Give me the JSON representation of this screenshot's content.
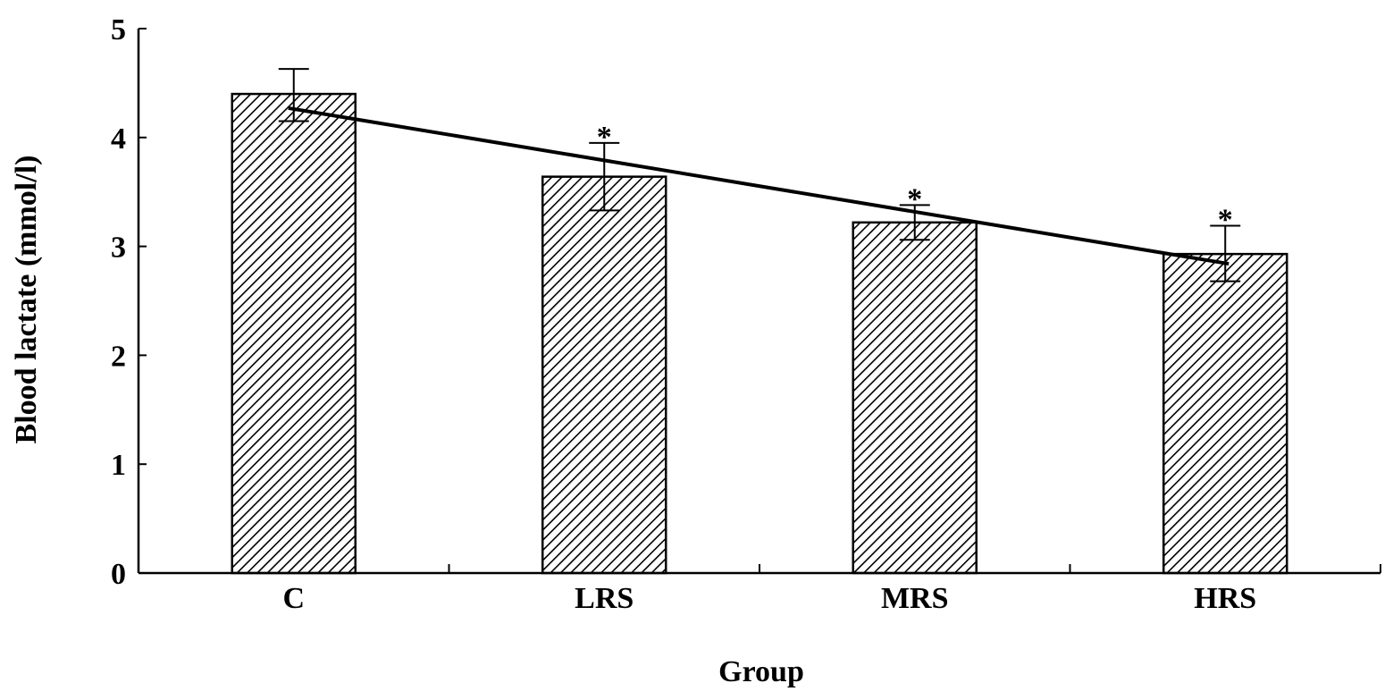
{
  "chart_data": {
    "type": "bar",
    "title": "",
    "xlabel": "Group",
    "ylabel": "Blood lactate (mmol/l)",
    "ylim": [
      0,
      5
    ],
    "yticks": [
      0,
      1,
      2,
      3,
      4,
      5
    ],
    "categories": [
      "C",
      "LRS",
      "MRS",
      "HRS"
    ],
    "values": [
      4.4,
      3.64,
      3.22,
      2.93
    ],
    "error_upper": [
      4.63,
      3.95,
      3.38,
      3.19
    ],
    "error_lower": [
      4.15,
      3.33,
      3.06,
      2.68
    ],
    "significance": [
      "",
      "*",
      "*",
      "*"
    ],
    "trendline": {
      "start": 4.27,
      "end": 2.84
    },
    "bar_fill": "diagonal-hatch",
    "colors": {
      "bar_stroke": "#000000",
      "hatch": "#000000",
      "background": "#ffffff"
    },
    "grid": false,
    "legend": "none"
  }
}
